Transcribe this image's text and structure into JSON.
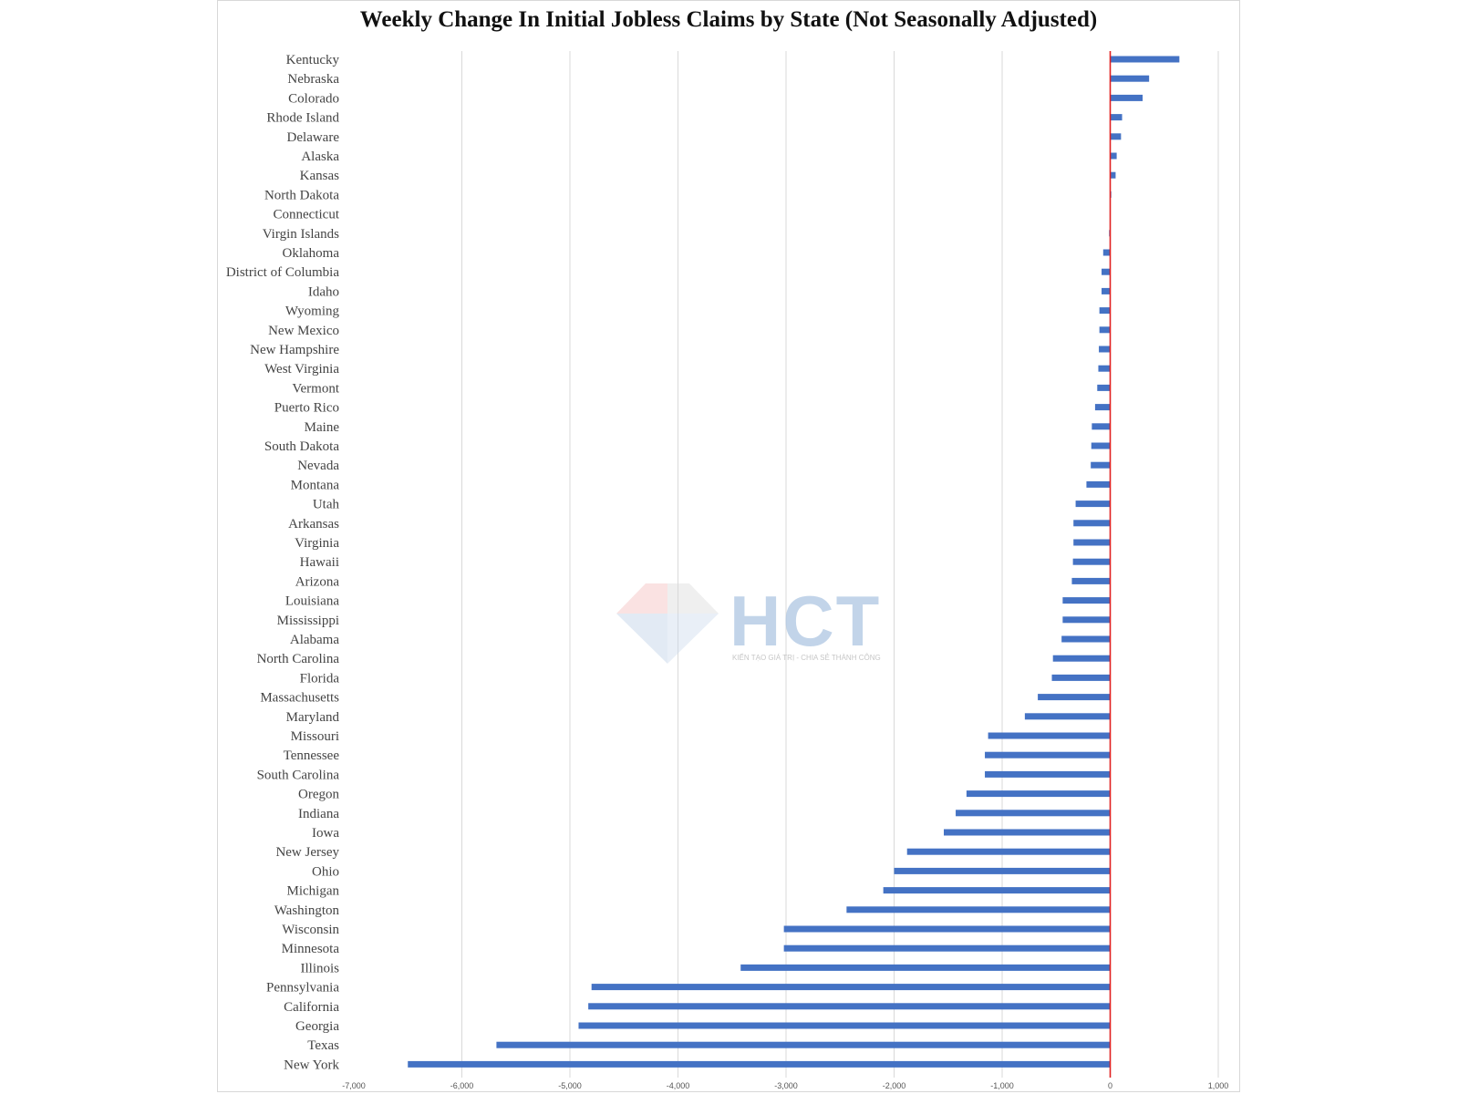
{
  "watermark": {
    "brand": "HCT",
    "tagline": "KIẾN TẠO GIÁ TRỊ - CHIA SẺ THÀNH CÔNG"
  },
  "chart_data": {
    "type": "bar",
    "orientation": "horizontal",
    "title": "Weekly Change In Initial Jobless Claims by State (Not Seasonally Adjusted)",
    "xlabel": "",
    "ylabel": "",
    "xlim": [
      -7000,
      1000
    ],
    "xticks": [
      -7000,
      -6000,
      -5000,
      -4000,
      -3000,
      -2000,
      -1000,
      0,
      1000
    ],
    "xtick_labels": [
      "-7,000",
      "-6,000",
      "-5,000",
      "-4,000",
      "-3,000",
      "-2,000",
      "-1,000",
      "0",
      "1,000"
    ],
    "grid": "vertical",
    "bar_color": "#4472c4",
    "zero_line_color": "#e02020",
    "categories": [
      "Kentucky",
      "Nebraska",
      "Colorado",
      "Rhode Island",
      "Delaware",
      "Alaska",
      "Kansas",
      "North Dakota",
      "Connecticut",
      "Virgin Islands",
      "Oklahoma",
      "District of Columbia",
      "Idaho",
      "Wyoming",
      "New Mexico",
      "New Hampshire",
      "West Virginia",
      "Vermont",
      "Puerto Rico",
      "Maine",
      "South Dakota",
      "Nevada",
      "Montana",
      "Utah",
      "Arkansas",
      "Virginia",
      "Hawaii",
      "Arizona",
      "Louisiana",
      "Mississippi",
      "Alabama",
      "North Carolina",
      "Florida",
      "Massachusetts",
      "Maryland",
      "Missouri",
      "Tennessee",
      "South Carolina",
      "Oregon",
      "Indiana",
      "Iowa",
      "New Jersey",
      "Ohio",
      "Michigan",
      "Washington",
      "Wisconsin",
      "Minnesota",
      "Illinois",
      "Pennsylvania",
      "California",
      "Georgia",
      "Texas",
      "New York"
    ],
    "values": [
      640,
      360,
      300,
      110,
      100,
      60,
      50,
      10,
      0,
      -10,
      -65,
      -80,
      -80,
      -100,
      -100,
      -105,
      -110,
      -120,
      -140,
      -170,
      -175,
      -180,
      -220,
      -320,
      -340,
      -340,
      -345,
      -355,
      -440,
      -440,
      -450,
      -530,
      -540,
      -670,
      -790,
      -1130,
      -1160,
      -1160,
      -1330,
      -1430,
      -1540,
      -1880,
      -2000,
      -2100,
      -2440,
      -3020,
      -3020,
      -3420,
      -4800,
      -4830,
      -4920,
      -5680,
      -6500
    ]
  }
}
